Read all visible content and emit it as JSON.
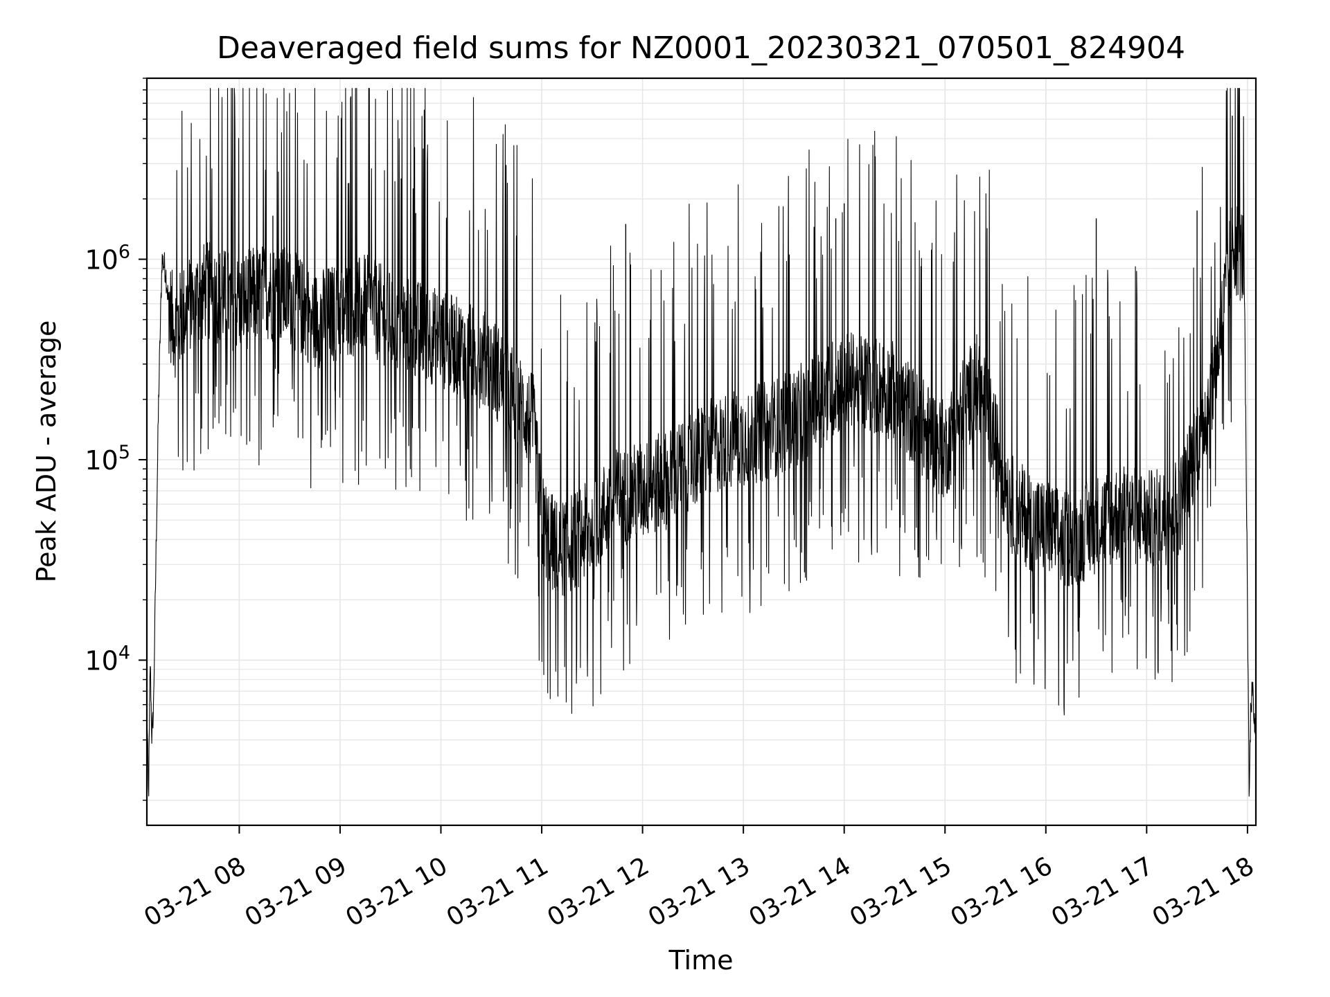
{
  "chart_data": {
    "type": "line",
    "title": "Deaveraged field sums for NZ0001_20230321_070501_824904",
    "xlabel": "Time",
    "ylabel": "Peak ADU - average",
    "yscale": "log",
    "ylim": [
      1500,
      8000000
    ],
    "xlim": [
      "2023-03-21 07:05",
      "2023-03-21 18:05"
    ],
    "grid": true,
    "legend": "none",
    "line_color": "#000000",
    "grid_color": "#e6e6e6",
    "x_ticks": [
      {
        "t": "2023-03-21 08:00",
        "label": "03-21 08"
      },
      {
        "t": "2023-03-21 09:00",
        "label": "03-21 09"
      },
      {
        "t": "2023-03-21 10:00",
        "label": "03-21 10"
      },
      {
        "t": "2023-03-21 11:00",
        "label": "03-21 11"
      },
      {
        "t": "2023-03-21 12:00",
        "label": "03-21 12"
      },
      {
        "t": "2023-03-21 13:00",
        "label": "03-21 13"
      },
      {
        "t": "2023-03-21 14:00",
        "label": "03-21 14"
      },
      {
        "t": "2023-03-21 15:00",
        "label": "03-21 15"
      },
      {
        "t": "2023-03-21 16:00",
        "label": "03-21 16"
      },
      {
        "t": "2023-03-21 17:00",
        "label": "03-21 17"
      },
      {
        "t": "2023-03-21 18:00",
        "label": "03-21 18"
      }
    ],
    "y_ticks": [
      {
        "value": 10000,
        "base": "10",
        "exp": "4"
      },
      {
        "value": 100000,
        "base": "10",
        "exp": "5"
      },
      {
        "value": 1000000,
        "base": "10",
        "exp": "6"
      }
    ],
    "series": [
      {
        "x": [
          "2023-03-21 07:05",
          "2023-03-21 07:06",
          "2023-03-21 07:07",
          "2023-03-21 07:08",
          "2023-03-21 07:09",
          "2023-03-21 07:10",
          "2023-03-21 07:12",
          "2023-03-21 07:14",
          "2023-03-21 07:16",
          "2023-03-21 07:18",
          "2023-03-21 07:20",
          "2023-03-21 07:22",
          "2023-03-21 07:25",
          "2023-03-21 07:30",
          "2023-03-21 07:40",
          "2023-03-21 07:50",
          "2023-03-21 08:00",
          "2023-03-21 08:15",
          "2023-03-21 08:30",
          "2023-03-21 08:45",
          "2023-03-21 09:00",
          "2023-03-21 09:15",
          "2023-03-21 09:30",
          "2023-03-21 09:45",
          "2023-03-21 10:00",
          "2023-03-21 10:15",
          "2023-03-21 10:30",
          "2023-03-21 10:45",
          "2023-03-21 10:55",
          "2023-03-21 11:00",
          "2023-03-21 11:05",
          "2023-03-21 11:10",
          "2023-03-21 11:20",
          "2023-03-21 11:30",
          "2023-03-21 11:40",
          "2023-03-21 11:45",
          "2023-03-21 12:00",
          "2023-03-21 12:15",
          "2023-03-21 12:30",
          "2023-03-21 12:45",
          "2023-03-21 13:00",
          "2023-03-21 13:15",
          "2023-03-21 13:30",
          "2023-03-21 13:45",
          "2023-03-21 14:00",
          "2023-03-21 14:15",
          "2023-03-21 14:30",
          "2023-03-21 14:45",
          "2023-03-21 15:00",
          "2023-03-21 15:10",
          "2023-03-21 15:20",
          "2023-03-21 15:30",
          "2023-03-21 15:40",
          "2023-03-21 15:50",
          "2023-03-21 16:00",
          "2023-03-21 16:10",
          "2023-03-21 16:20",
          "2023-03-21 16:30",
          "2023-03-21 16:45",
          "2023-03-21 17:00",
          "2023-03-21 17:10",
          "2023-03-21 17:20",
          "2023-03-21 17:30",
          "2023-03-21 17:40",
          "2023-03-21 17:45",
          "2023-03-21 17:48",
          "2023-03-21 17:50",
          "2023-03-21 17:52",
          "2023-03-21 17:55",
          "2023-03-21 17:58",
          "2023-03-21 18:00",
          "2023-03-21 18:01",
          "2023-03-21 18:02",
          "2023-03-21 18:03",
          "2023-03-21 18:04",
          "2023-03-21 18:05"
        ],
        "y": [
          6000,
          2000,
          10000,
          4000,
          6000,
          20000,
          200000,
          1000000,
          900000,
          600000,
          500000,
          450000,
          500000,
          600000,
          700000,
          650000,
          600000,
          700000,
          650000,
          500000,
          550000,
          600000,
          500000,
          450000,
          400000,
          350000,
          300000,
          200000,
          150000,
          50000,
          40000,
          35000,
          40000,
          45000,
          60000,
          65000,
          70000,
          80000,
          100000,
          120000,
          130000,
          140000,
          160000,
          200000,
          250000,
          240000,
          220000,
          150000,
          110000,
          180000,
          250000,
          120000,
          60000,
          50000,
          45000,
          40000,
          42000,
          48000,
          55000,
          50000,
          52000,
          60000,
          120000,
          250000,
          500000,
          800000,
          1000000,
          1200000,
          1100000,
          1000000,
          20000,
          2000,
          6000,
          7000,
          5000,
          4000
        ]
      }
    ],
    "spikes": [
      {
        "t": "2023-03-21 17:51",
        "value": 5200000
      },
      {
        "t": "2023-03-21 14:00",
        "value": 1900000
      },
      {
        "t": "2023-03-21 13:55",
        "value": 1600000
      },
      {
        "t": "2023-03-21 11:50",
        "value": 1500000
      },
      {
        "t": "2023-03-21 16:30",
        "value": 1600000
      },
      {
        "t": "2023-03-21 17:30",
        "value": 1750000
      },
      {
        "t": "2023-03-21 09:45",
        "value": 1700000
      },
      {
        "t": "2023-03-21 08:20",
        "value": 1650000
      }
    ]
  }
}
